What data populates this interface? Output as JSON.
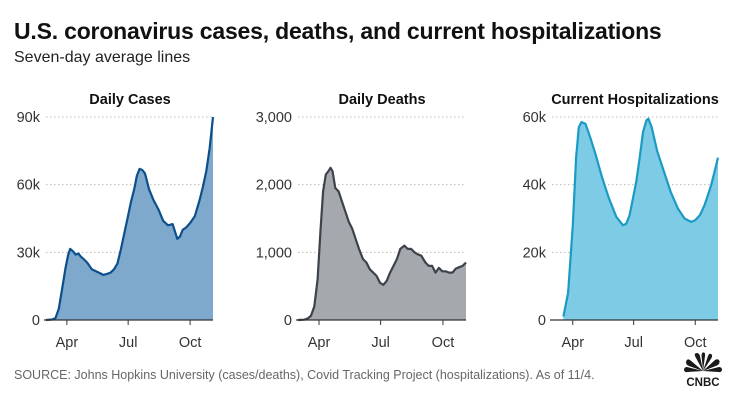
{
  "header": {
    "title": "U.S. coronavirus cases, deaths, and current hospitalizations",
    "subtitle": "Seven-day average lines"
  },
  "footer": {
    "source": "SOURCE: Johns Hopkins University (cases/deaths), Covid Tracking Project (hospitalizations). As of 11/4.",
    "brand": "CNBC"
  },
  "colors": {
    "cases_fill": "#7fa9cc",
    "cases_line": "#0d4f8b",
    "deaths_fill": "#a5a8ad",
    "deaths_line": "#3d434b",
    "hosp_fill": "#7dcbe4",
    "hosp_line": "#1b9ac4"
  },
  "chart_data": [
    {
      "type": "area",
      "title": "Daily Cases",
      "x_ticks": [
        "Apr",
        "Jul",
        "Oct"
      ],
      "y_ticks": [
        "0",
        "30k",
        "60k",
        "90k"
      ],
      "ylim": [
        0,
        90000
      ],
      "xlim": [
        "2020-03-01",
        "2020-11-04"
      ],
      "grid": true,
      "series": [
        {
          "x": [
            "2020-03-01",
            "2020-03-10",
            "2020-03-15",
            "2020-03-20",
            "2020-03-25",
            "2020-03-30",
            "2020-04-03",
            "2020-04-06",
            "2020-04-10",
            "2020-04-14",
            "2020-04-18",
            "2020-04-22",
            "2020-04-26",
            "2020-05-01",
            "2020-05-08",
            "2020-05-15",
            "2020-05-20",
            "2020-05-25",
            "2020-05-31",
            "2020-06-05",
            "2020-06-10",
            "2020-06-15",
            "2020-06-20",
            "2020-06-25",
            "2020-06-30",
            "2020-07-05",
            "2020-07-10",
            "2020-07-14",
            "2020-07-18",
            "2020-07-22",
            "2020-07-26",
            "2020-08-01",
            "2020-08-08",
            "2020-08-15",
            "2020-08-22",
            "2020-08-29",
            "2020-09-05",
            "2020-09-12",
            "2020-09-16",
            "2020-09-20",
            "2020-09-25",
            "2020-10-01",
            "2020-10-08",
            "2020-10-15",
            "2020-10-20",
            "2020-10-25",
            "2020-10-30",
            "2020-11-04"
          ],
          "y": [
            0,
            200,
            800,
            5000,
            14000,
            23000,
            29000,
            31500,
            30500,
            29000,
            29500,
            28000,
            27000,
            25500,
            22500,
            21500,
            20800,
            20000,
            20500,
            21000,
            22500,
            25000,
            31000,
            38000,
            45000,
            52000,
            58000,
            64000,
            67000,
            66500,
            65000,
            58000,
            53000,
            49000,
            44000,
            42000,
            42500,
            36000,
            37000,
            40000,
            41000,
            43000,
            46000,
            53000,
            59000,
            66000,
            76000,
            90000
          ]
        }
      ]
    },
    {
      "type": "area",
      "title": "Daily Deaths",
      "x_ticks": [
        "Apr",
        "Jul",
        "Oct"
      ],
      "y_ticks": [
        "0",
        "1,000",
        "2,000",
        "3,000"
      ],
      "ylim": [
        0,
        3000
      ],
      "xlim": [
        "2020-03-01",
        "2020-11-04"
      ],
      "grid": true,
      "series": [
        {
          "x": [
            "2020-03-01",
            "2020-03-10",
            "2020-03-15",
            "2020-03-20",
            "2020-03-25",
            "2020-03-30",
            "2020-04-03",
            "2020-04-07",
            "2020-04-11",
            "2020-04-15",
            "2020-04-18",
            "2020-04-21",
            "2020-04-25",
            "2020-04-30",
            "2020-05-05",
            "2020-05-10",
            "2020-05-15",
            "2020-05-20",
            "2020-05-25",
            "2020-05-30",
            "2020-06-05",
            "2020-06-10",
            "2020-06-15",
            "2020-06-20",
            "2020-06-25",
            "2020-06-30",
            "2020-07-05",
            "2020-07-10",
            "2020-07-15",
            "2020-07-20",
            "2020-07-25",
            "2020-07-30",
            "2020-08-05",
            "2020-08-10",
            "2020-08-15",
            "2020-08-20",
            "2020-08-25",
            "2020-08-30",
            "2020-09-05",
            "2020-09-10",
            "2020-09-15",
            "2020-09-20",
            "2020-09-25",
            "2020-09-30",
            "2020-10-05",
            "2020-10-10",
            "2020-10-15",
            "2020-10-20",
            "2020-10-25",
            "2020-10-30",
            "2020-11-04"
          ],
          "y": [
            0,
            5,
            20,
            60,
            200,
            600,
            1300,
            1900,
            2150,
            2200,
            2250,
            2200,
            1950,
            1900,
            1750,
            1600,
            1450,
            1350,
            1200,
            1050,
            900,
            850,
            750,
            700,
            650,
            550,
            520,
            580,
            700,
            800,
            900,
            1050,
            1100,
            1050,
            1050,
            1000,
            970,
            950,
            850,
            800,
            800,
            700,
            770,
            720,
            720,
            700,
            700,
            760,
            780,
            800,
            850
          ]
        }
      ]
    },
    {
      "type": "area",
      "title": "Current Hospitalizations",
      "x_ticks": [
        "Apr",
        "Jul",
        "Oct"
      ],
      "y_ticks": [
        "0",
        "20k",
        "40k",
        "60k"
      ],
      "ylim": [
        0,
        60000
      ],
      "xlim": [
        "2020-03-01",
        "2020-11-04"
      ],
      "grid": true,
      "series": [
        {
          "x": [
            "2020-03-18",
            "2020-03-25",
            "2020-04-01",
            "2020-04-06",
            "2020-04-10",
            "2020-04-14",
            "2020-04-20",
            "2020-04-27",
            "2020-05-05",
            "2020-05-15",
            "2020-05-25",
            "2020-06-05",
            "2020-06-15",
            "2020-06-20",
            "2020-06-25",
            "2020-06-30",
            "2020-07-05",
            "2020-07-10",
            "2020-07-15",
            "2020-07-20",
            "2020-07-23",
            "2020-07-28",
            "2020-08-05",
            "2020-08-15",
            "2020-08-25",
            "2020-09-05",
            "2020-09-15",
            "2020-09-25",
            "2020-10-01",
            "2020-10-08",
            "2020-10-15",
            "2020-10-20",
            "2020-10-25",
            "2020-10-30",
            "2020-11-04"
          ],
          "y": [
            1000,
            8000,
            28000,
            48000,
            57000,
            58500,
            58000,
            54000,
            49000,
            42000,
            36000,
            30500,
            28000,
            28500,
            31000,
            36000,
            41000,
            48000,
            55500,
            59000,
            59500,
            57000,
            50000,
            44000,
            38000,
            33000,
            30000,
            29000,
            29500,
            31000,
            34000,
            37000,
            40000,
            44000,
            48000
          ]
        }
      ]
    }
  ]
}
